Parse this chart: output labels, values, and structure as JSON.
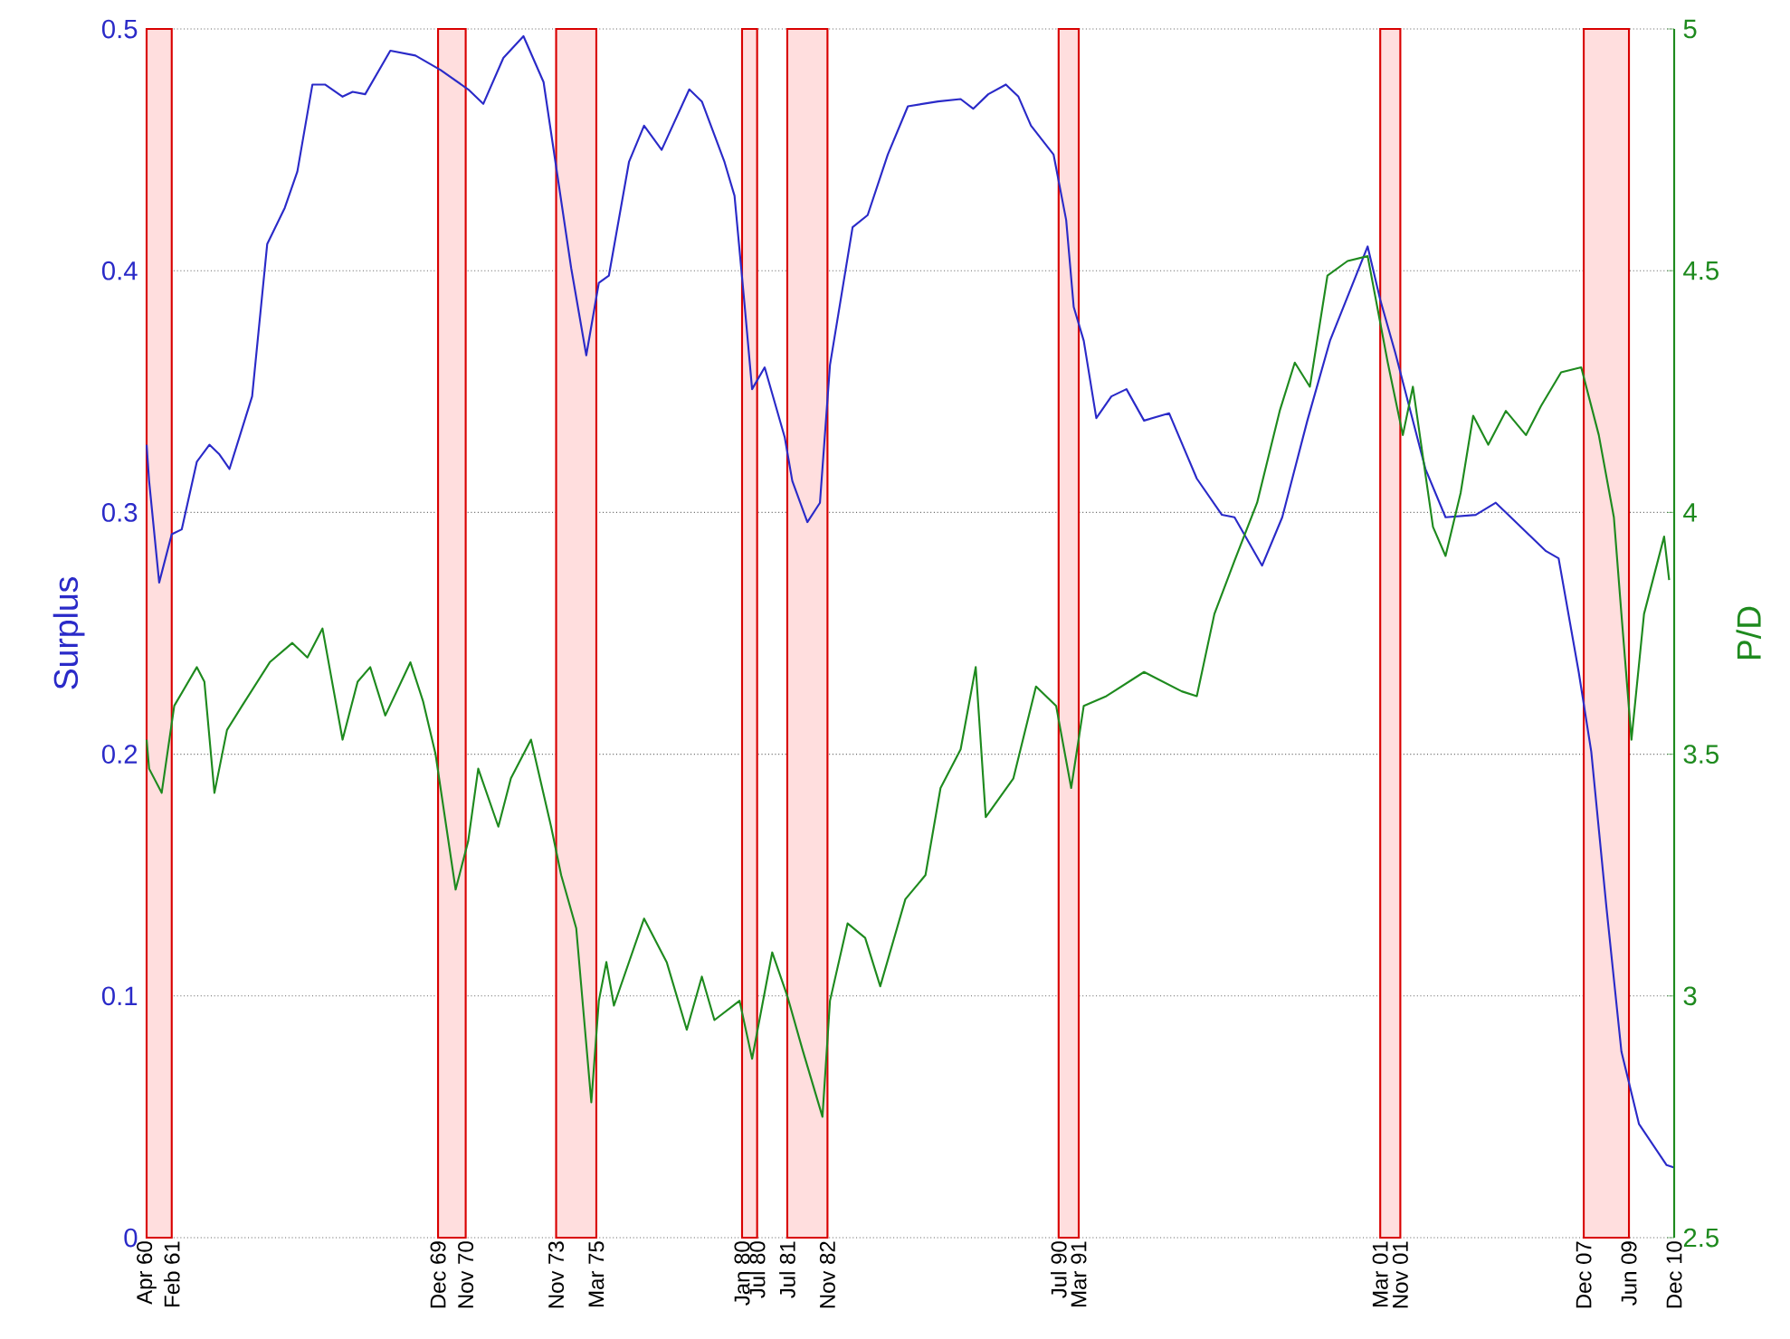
{
  "chart_data": {
    "type": "line",
    "ylabel": "Surplus",
    "y2label": "P/D",
    "xlim": [
      "1960-04",
      "2010-12"
    ],
    "xticks": [
      {
        "value": "1960-04",
        "label": "Apr 60"
      },
      {
        "value": "1961-02",
        "label": "Feb 61"
      },
      {
        "value": "1969-12",
        "label": "Dec 69"
      },
      {
        "value": "1970-11",
        "label": "Nov 70"
      },
      {
        "value": "1973-11",
        "label": "Nov 73"
      },
      {
        "value": "1975-03",
        "label": "Mar 75"
      },
      {
        "value": "1980-01",
        "label": "Jan 80"
      },
      {
        "value": "1980-07",
        "label": "Jul 80"
      },
      {
        "value": "1981-07",
        "label": "Jul 81"
      },
      {
        "value": "1982-11",
        "label": "Nov 82"
      },
      {
        "value": "1990-07",
        "label": "Jul 90"
      },
      {
        "value": "1991-03",
        "label": "Mar 91"
      },
      {
        "value": "2001-03",
        "label": "Mar 01"
      },
      {
        "value": "2001-11",
        "label": "Nov 01"
      },
      {
        "value": "2007-12",
        "label": "Dec 07"
      },
      {
        "value": "2009-06",
        "label": "Jun 09"
      },
      {
        "value": "2010-12",
        "label": "Dec 10"
      }
    ],
    "ylim": [
      0,
      0.5
    ],
    "yticks": [
      0,
      0.1,
      0.2,
      0.3,
      0.4,
      0.5
    ],
    "y2lim": [
      2.5,
      5
    ],
    "y2ticks": [
      2.5,
      3,
      3.5,
      4,
      4.5,
      5
    ],
    "grid": "y",
    "bands": [
      {
        "axis": "x",
        "from": "1960-04",
        "to": "1961-02",
        "color": "#ffdede"
      },
      {
        "axis": "x",
        "from": "1969-12",
        "to": "1970-11",
        "color": "#ffdede"
      },
      {
        "axis": "x",
        "from": "1973-11",
        "to": "1975-03",
        "color": "#ffdede"
      },
      {
        "axis": "x",
        "from": "1980-01",
        "to": "1980-07",
        "color": "#ffdede"
      },
      {
        "axis": "x",
        "from": "1981-07",
        "to": "1982-11",
        "color": "#ffdede"
      },
      {
        "axis": "x",
        "from": "1990-07",
        "to": "1991-03",
        "color": "#ffdede"
      },
      {
        "axis": "x",
        "from": "2001-03",
        "to": "2001-11",
        "color": "#ffdede"
      },
      {
        "axis": "x",
        "from": "2007-12",
        "to": "2009-06",
        "color": "#ffdede"
      }
    ],
    "series": [
      {
        "color": "#2a2ac8",
        "x": [
          "1960-04",
          "1960-05",
          "1960-09",
          "1961-02",
          "1961-06",
          "1961-12",
          "1962-05",
          "1962-09",
          "1963-01",
          "1963-10",
          "1964-04",
          "1964-11",
          "1965-04",
          "1965-10",
          "1966-03",
          "1966-10",
          "1967-02",
          "1967-07",
          "1968-05",
          "1969-03",
          "1970-01",
          "1970-12",
          "1971-06",
          "1972-02",
          "1972-10",
          "1973-06",
          "1973-12",
          "1974-05",
          "1974-11",
          "1975-04",
          "1975-08",
          "1976-04",
          "1976-10",
          "1977-05",
          "1978-04",
          "1978-09",
          "1979-06",
          "1979-10",
          "1980-02",
          "1980-05",
          "1980-10",
          "1981-06",
          "1981-09",
          "1982-03",
          "1982-08",
          "1982-12",
          "1983-09",
          "1984-03",
          "1984-11",
          "1985-07",
          "1986-07",
          "1987-04",
          "1987-09",
          "1988-03",
          "1988-10",
          "1989-03",
          "1989-08",
          "1990-05",
          "1990-10",
          "1991-01",
          "1991-05",
          "1991-10",
          "1992-04",
          "1992-10",
          "1993-05",
          "1994-03",
          "1995-02",
          "1995-12",
          "1996-05",
          "1997-04",
          "1997-12",
          "1998-10",
          "1999-07",
          "2000-10",
          "2001-03",
          "2001-09",
          "2002-09",
          "2003-05",
          "2004-05",
          "2005-01",
          "2005-11",
          "2006-09",
          "2007-02",
          "2007-10",
          "2008-03",
          "2008-09",
          "2009-03",
          "2009-10",
          "2010-09",
          "2010-12"
        ],
        "values": [
          0.328,
          0.313,
          0.271,
          0.291,
          0.293,
          0.321,
          0.328,
          0.324,
          0.318,
          0.348,
          0.411,
          0.426,
          0.441,
          0.477,
          0.477,
          0.472,
          0.474,
          0.473,
          0.491,
          0.489,
          0.483,
          0.475,
          0.469,
          0.488,
          0.497,
          0.478,
          0.436,
          0.401,
          0.365,
          0.395,
          0.398,
          0.445,
          0.46,
          0.45,
          0.475,
          0.47,
          0.445,
          0.431,
          0.386,
          0.351,
          0.36,
          0.331,
          0.313,
          0.296,
          0.304,
          0.361,
          0.418,
          0.423,
          0.448,
          0.468,
          0.47,
          0.471,
          0.467,
          0.473,
          0.477,
          0.472,
          0.46,
          0.448,
          0.421,
          0.385,
          0.371,
          0.339,
          0.348,
          0.351,
          0.338,
          0.341,
          0.314,
          0.299,
          0.298,
          0.278,
          0.298,
          0.338,
          0.371,
          0.41,
          0.388,
          0.366,
          0.318,
          0.298,
          0.299,
          0.304,
          0.294,
          0.284,
          0.281,
          0.234,
          0.201,
          0.137,
          0.077,
          0.047,
          0.03,
          0.029
        ]
      },
      {
        "color": "#1e8a1e",
        "axis": "y2",
        "x": [
          "1960-04",
          "1960-05",
          "1960-10",
          "1961-03",
          "1961-12",
          "1962-03",
          "1962-07",
          "1962-12",
          "1963-06",
          "1964-05",
          "1965-02",
          "1965-08",
          "1966-02",
          "1966-10",
          "1967-04",
          "1967-09",
          "1968-03",
          "1969-01",
          "1969-06",
          "1969-11",
          "1970-07",
          "1970-12",
          "1971-04",
          "1971-12",
          "1972-05",
          "1973-01",
          "1973-09",
          "1974-01",
          "1974-07",
          "1975-01",
          "1975-04",
          "1975-07",
          "1975-10",
          "1976-10",
          "1977-07",
          "1978-03",
          "1978-09",
          "1979-02",
          "1979-12",
          "1980-05",
          "1981-01",
          "1981-07",
          "1982-01",
          "1982-09",
          "1982-12",
          "1983-07",
          "1984-02",
          "1984-08",
          "1985-06",
          "1986-02",
          "1986-08",
          "1987-04",
          "1987-10",
          "1988-02",
          "1989-01",
          "1989-10",
          "1990-06",
          "1990-12",
          "1991-05",
          "1992-02",
          "1993-05",
          "1994-08",
          "1995-02",
          "1995-09",
          "1996-05",
          "1997-02",
          "1997-11",
          "1998-05",
          "1998-11",
          "1999-06",
          "2000-02",
          "2000-10",
          "2001-06",
          "2001-12",
          "2002-04",
          "2002-12",
          "2003-05",
          "2003-11",
          "2004-04",
          "2004-10",
          "2005-05",
          "2006-01",
          "2006-07",
          "2007-03",
          "2007-11",
          "2008-06",
          "2008-12",
          "2009-03",
          "2009-07",
          "2009-12",
          "2010-04",
          "2010-08",
          "2010-10"
        ],
        "values": [
          3.53,
          3.47,
          3.42,
          3.6,
          3.68,
          3.65,
          3.42,
          3.55,
          3.6,
          3.69,
          3.73,
          3.7,
          3.76,
          3.53,
          3.65,
          3.68,
          3.58,
          3.69,
          3.61,
          3.5,
          3.22,
          3.32,
          3.47,
          3.35,
          3.45,
          3.53,
          3.35,
          3.25,
          3.14,
          2.78,
          2.99,
          3.07,
          2.98,
          3.16,
          3.07,
          2.93,
          3.04,
          2.95,
          2.99,
          2.87,
          3.09,
          3.0,
          2.89,
          2.75,
          2.99,
          3.15,
          3.12,
          3.02,
          3.2,
          3.25,
          3.43,
          3.51,
          3.68,
          3.37,
          3.45,
          3.64,
          3.6,
          3.43,
          3.6,
          3.62,
          3.67,
          3.63,
          3.62,
          3.79,
          3.9,
          4.02,
          4.21,
          4.31,
          4.26,
          4.49,
          4.52,
          4.53,
          4.31,
          4.16,
          4.26,
          3.97,
          3.91,
          4.04,
          4.2,
          4.14,
          4.21,
          4.16,
          4.22,
          4.29,
          4.3,
          4.16,
          3.99,
          3.79,
          3.53,
          3.79,
          3.87,
          3.95,
          3.86
        ]
      }
    ]
  }
}
